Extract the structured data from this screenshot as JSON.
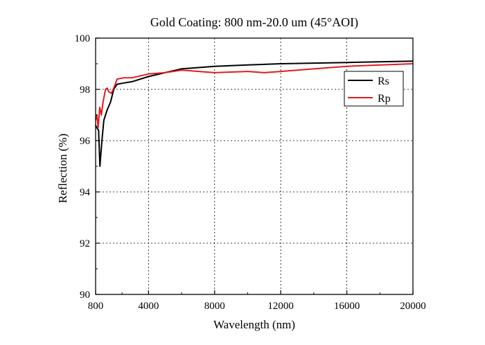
{
  "chart_data": {
    "type": "line",
    "title": "Gold Coating: 800 nm-20.0 um (45°AOI)",
    "xlabel": "Wavelength (nm)",
    "ylabel": "Reflection (%)",
    "xlim": [
      800,
      20000
    ],
    "ylim": [
      90,
      100
    ],
    "xticks": [
      800,
      4000,
      8000,
      12000,
      16000,
      20000
    ],
    "yticks": [
      90,
      92,
      94,
      96,
      98,
      100
    ],
    "grid": true,
    "grid_style": "dotted",
    "legend_position": "right",
    "series": [
      {
        "name": "Rs",
        "color": "#000000",
        "points": [
          [
            800,
            96.6
          ],
          [
            880,
            96.5
          ],
          [
            980,
            96.4
          ],
          [
            1060,
            95.0
          ],
          [
            1180,
            96.0
          ],
          [
            1300,
            96.8
          ],
          [
            1500,
            97.2
          ],
          [
            1700,
            97.5
          ],
          [
            1900,
            98.0
          ],
          [
            2100,
            98.2
          ],
          [
            2500,
            98.25
          ],
          [
            3000,
            98.3
          ],
          [
            4000,
            98.5
          ],
          [
            5000,
            98.65
          ],
          [
            6000,
            98.8
          ],
          [
            8000,
            98.9
          ],
          [
            10000,
            98.95
          ],
          [
            12000,
            99.0
          ],
          [
            16000,
            99.05
          ],
          [
            20000,
            99.1
          ]
        ]
      },
      {
        "name": "Rp",
        "color": "#e31a1c",
        "points": [
          [
            800,
            96.8
          ],
          [
            880,
            97.0
          ],
          [
            950,
            96.5
          ],
          [
            1050,
            97.3
          ],
          [
            1150,
            97.0
          ],
          [
            1250,
            97.5
          ],
          [
            1400,
            98.0
          ],
          [
            1500,
            98.05
          ],
          [
            1600,
            97.9
          ],
          [
            1750,
            97.85
          ],
          [
            1900,
            98.05
          ],
          [
            2100,
            98.4
          ],
          [
            2500,
            98.45
          ],
          [
            3000,
            98.45
          ],
          [
            4000,
            98.6
          ],
          [
            5000,
            98.65
          ],
          [
            6000,
            98.75
          ],
          [
            8000,
            98.65
          ],
          [
            10000,
            98.7
          ],
          [
            11000,
            98.65
          ],
          [
            12000,
            98.7
          ],
          [
            14000,
            98.8
          ],
          [
            16000,
            98.9
          ],
          [
            20000,
            99.0
          ]
        ]
      }
    ]
  }
}
